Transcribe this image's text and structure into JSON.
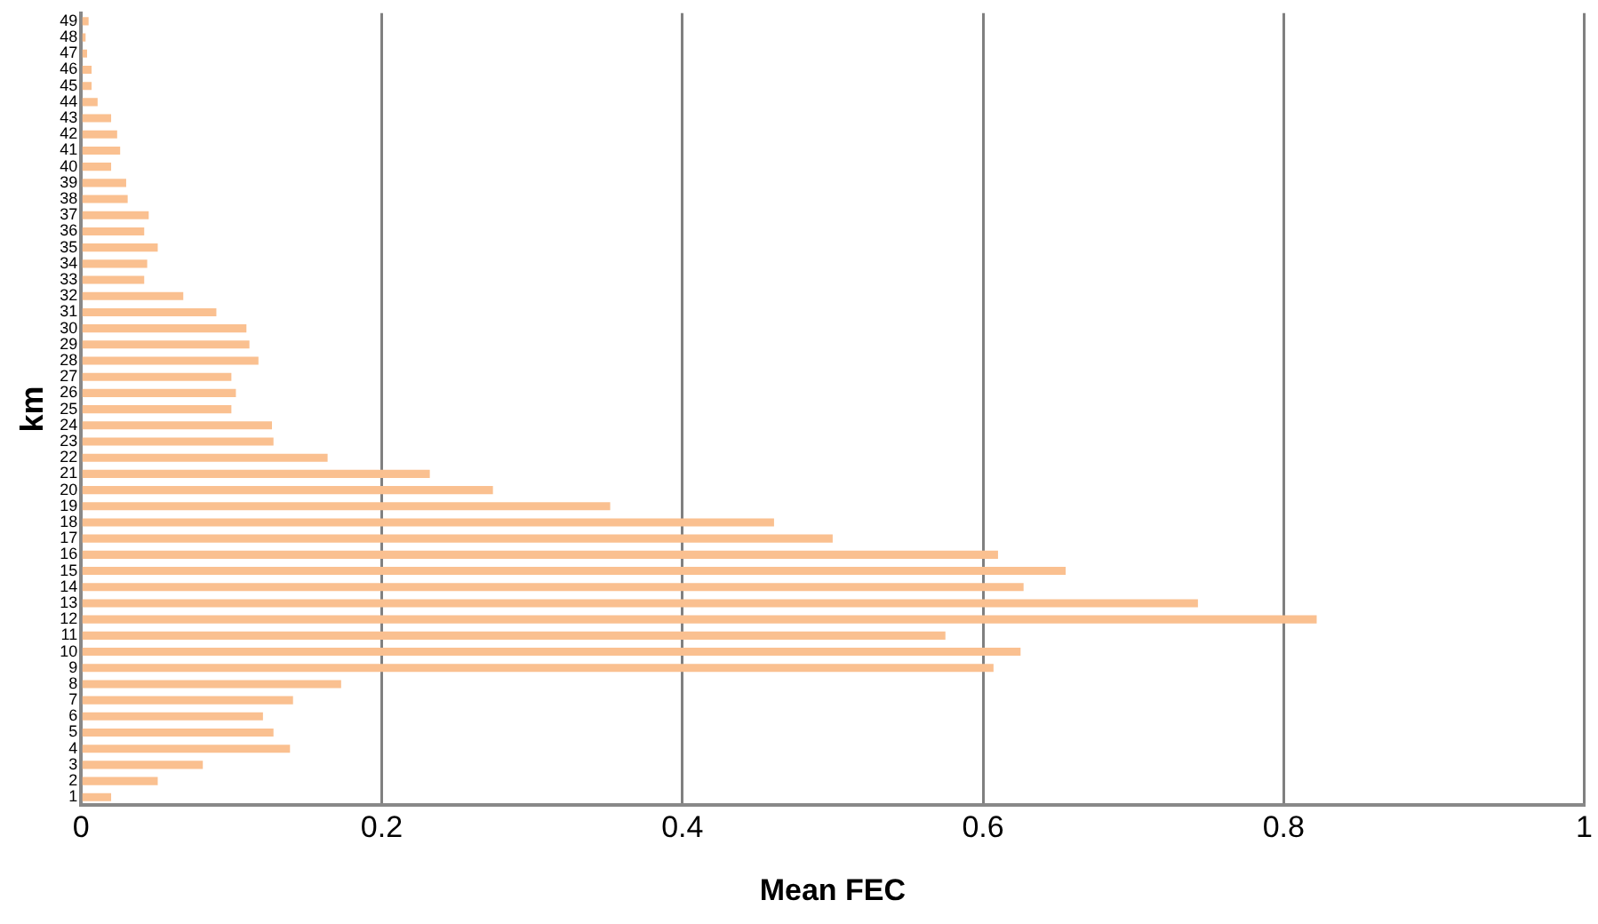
{
  "chart_data": {
    "type": "bar",
    "orientation": "horizontal",
    "xlabel": "Mean FEC",
    "ylabel": "km",
    "categories": [
      "49",
      "48",
      "47",
      "46",
      "45",
      "44",
      "43",
      "42",
      "41",
      "40",
      "39",
      "38",
      "37",
      "36",
      "35",
      "34",
      "33",
      "32",
      "31",
      "30",
      "29",
      "28",
      "27",
      "26",
      "25",
      "24",
      "23",
      "22",
      "21",
      "20",
      "19",
      "18",
      "17",
      "16",
      "15",
      "14",
      "13",
      "12",
      "11",
      "10",
      "9",
      "8",
      "7",
      "6",
      "5",
      "4",
      "3",
      "2",
      "1"
    ],
    "values": [
      0.005,
      0.003,
      0.004,
      0.007,
      0.007,
      0.011,
      0.02,
      0.024,
      0.026,
      0.02,
      0.03,
      0.031,
      0.045,
      0.042,
      0.051,
      0.044,
      0.042,
      0.068,
      0.09,
      0.11,
      0.112,
      0.118,
      0.1,
      0.103,
      0.1,
      0.127,
      0.128,
      0.164,
      0.232,
      0.274,
      0.352,
      0.461,
      0.5,
      0.61,
      0.655,
      0.627,
      0.743,
      0.822,
      0.575,
      0.625,
      0.607,
      0.173,
      0.141,
      0.121,
      0.128,
      0.139,
      0.081,
      0.051,
      0.02
    ],
    "color": "#fac090",
    "xlim": [
      0,
      1
    ],
    "xticks": [
      0,
      0.2,
      0.4,
      0.6,
      0.8,
      1
    ],
    "grid": "x"
  }
}
